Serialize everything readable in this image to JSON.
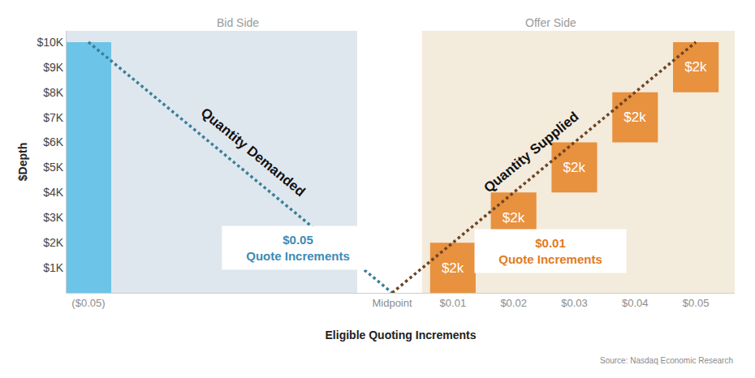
{
  "chart_data": {
    "type": "bar",
    "x_label": "Eligible Quoting Increments",
    "y_label": "$Depth",
    "annotations": [
      "Bid Side",
      "Offer Side",
      "$0.05\nQuote Increments",
      "$0.01\nQuote Increments",
      "Source: Nasdaq Economic Research"
    ],
    "xlim": [
      -0.0536,
      0.0564
    ],
    "xticks": [
      {
        "value": -0.05,
        "label": "($0.05)"
      },
      {
        "value": 0,
        "label": "Midpoint"
      },
      {
        "value": 0.01,
        "label": "$0.01"
      },
      {
        "value": 0.02,
        "label": "$0.02"
      },
      {
        "value": 0.03,
        "label": "$0.03"
      },
      {
        "value": 0.04,
        "label": "$0.04"
      },
      {
        "value": 0.05,
        "label": "$0.05"
      }
    ],
    "ylim": [
      0,
      10450
    ],
    "yticks": [
      {
        "value": 1000,
        "label": "$1K"
      },
      {
        "value": 2000,
        "label": "$2K"
      },
      {
        "value": 3000,
        "label": "$3K"
      },
      {
        "value": 4000,
        "label": "$4K"
      },
      {
        "value": 5000,
        "label": "$5K"
      },
      {
        "value": 6000,
        "label": "$6K"
      },
      {
        "value": 7000,
        "label": "$7K"
      },
      {
        "value": 8000,
        "label": "$8K"
      },
      {
        "value": 9000,
        "label": "$9K"
      },
      {
        "value": 10000,
        "label": "$10K"
      }
    ],
    "grid": false,
    "series": [
      {
        "type": "bar",
        "color": "#6cc4e9",
        "x": [
          -0.05
        ],
        "values": [
          10000
        ]
      },
      {
        "type": "waterfall",
        "color": "#e8913e",
        "x": [
          0.01,
          0.02,
          0.03,
          0.04,
          0.05
        ],
        "values": [
          2000,
          2000,
          2000,
          2000,
          2000
        ],
        "value_labels": [
          "$2k",
          "$2k",
          "$2k",
          "$2k",
          "$2k"
        ],
        "data_labels": true
      },
      {
        "name": "Quantity Demanded",
        "type": "line",
        "line_style": "dotted",
        "color": "#3b7f9a",
        "x": [
          -0.05,
          0
        ],
        "values": [
          10000,
          0
        ]
      },
      {
        "name": "Quantity Supplied",
        "type": "line",
        "line_style": "dotted",
        "color": "#6e4423",
        "x": [
          0,
          0.05
        ],
        "values": [
          0,
          10000
        ]
      }
    ]
  }
}
